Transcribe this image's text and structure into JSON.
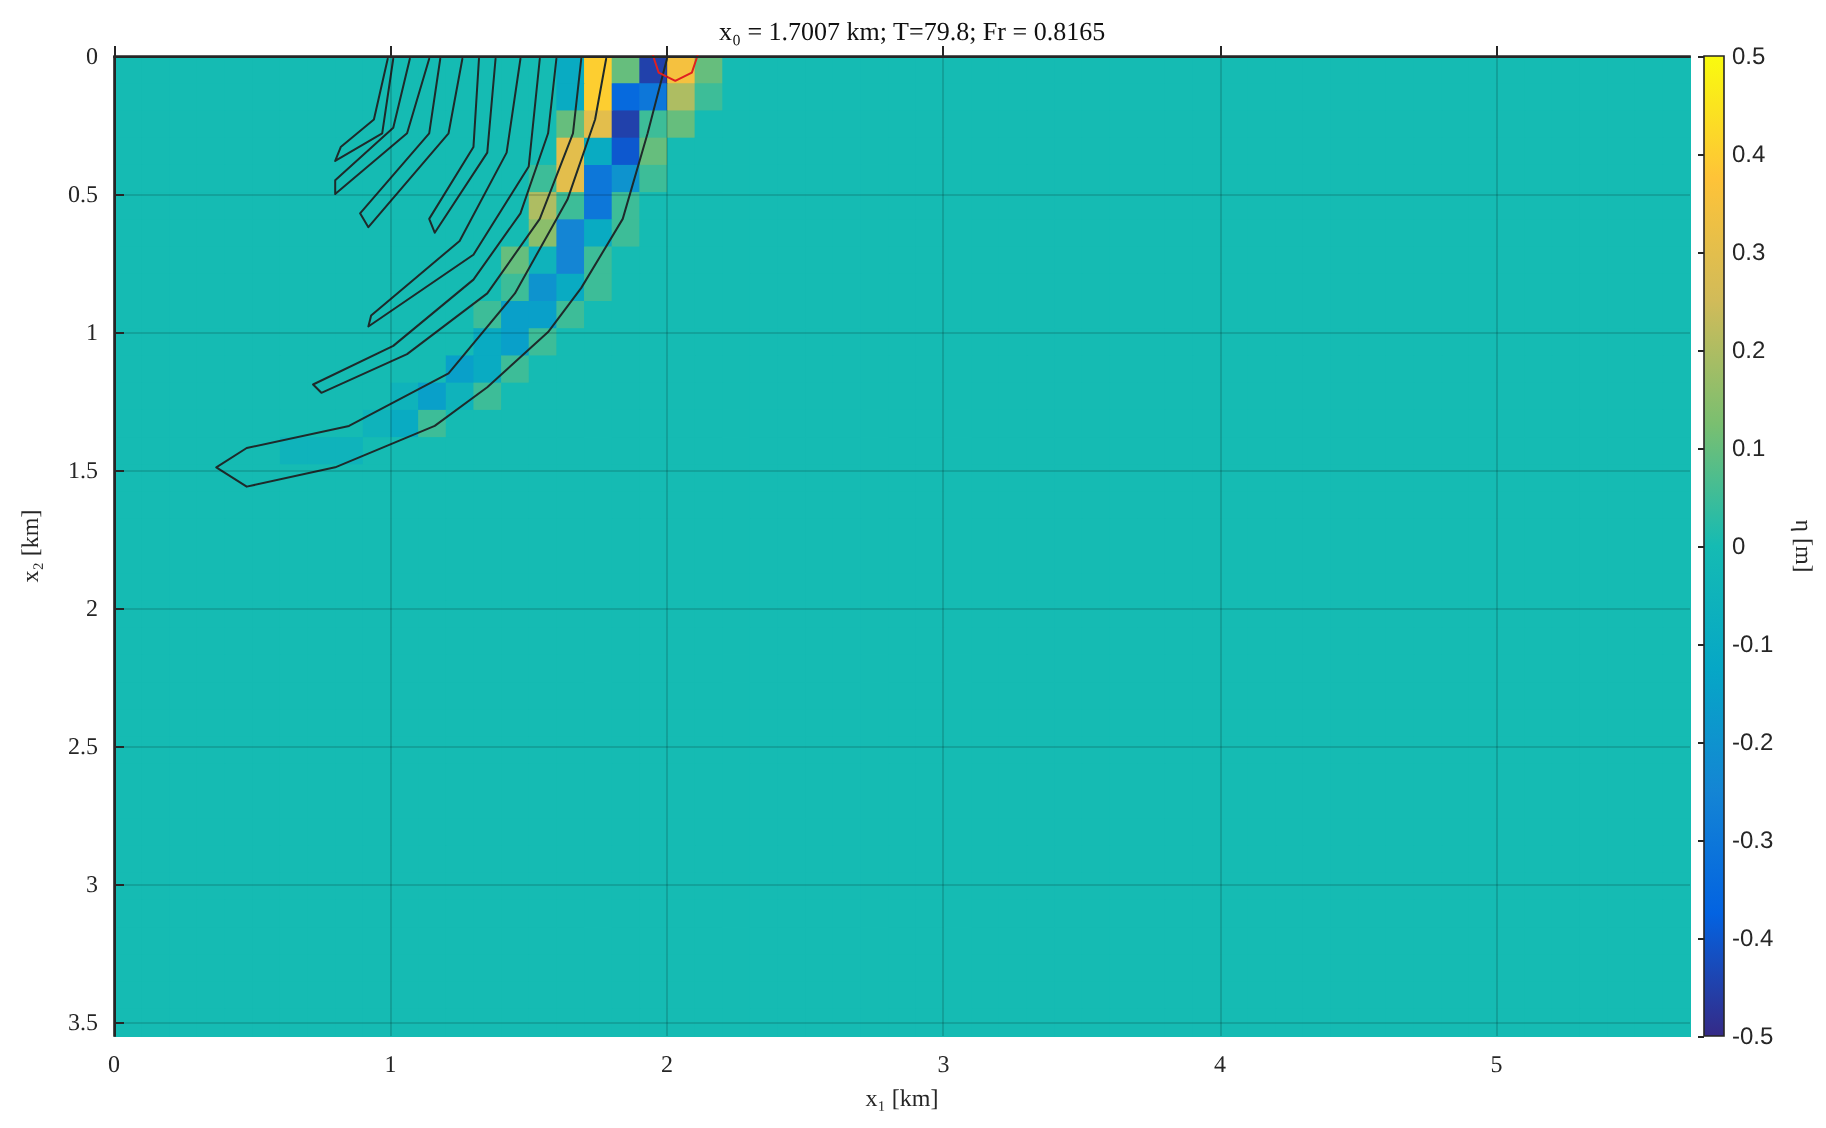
{
  "chart_data": {
    "type": "heatmap",
    "title": "x₀ = 1.7007 km; T=79.8; Fr = 0.8165",
    "xlabel": "x₁ [km]",
    "ylabel": "x₂ [km]",
    "clabel": "η [m]",
    "xlim": [
      0,
      5.7
    ],
    "ylim": [
      3.55,
      0
    ],
    "xticks": [
      0,
      1,
      2,
      3,
      4,
      5
    ],
    "yticks": [
      0,
      0.5,
      1,
      1.5,
      2,
      2.5,
      3,
      3.5
    ],
    "clim": [
      -0.5,
      0.5
    ],
    "cticks": [
      -0.5,
      -0.4,
      -0.3,
      -0.2,
      -0.1,
      0,
      0.1,
      0.2,
      0.3,
      0.4,
      0.5
    ],
    "grid": true,
    "cells": [
      [
        0,
        0,
        0,
        0,
        0,
        0,
        0,
        0,
        0,
        0,
        0,
        0,
        0,
        0,
        0,
        0,
        -0.1,
        0.4,
        0.1,
        -0.45,
        0.35,
        0.1,
        0,
        0,
        0,
        0,
        0,
        0,
        0,
        0,
        0,
        0,
        0,
        0,
        0,
        0,
        0,
        0,
        0,
        0,
        0,
        0,
        0,
        0,
        0,
        0,
        0,
        0,
        0,
        0,
        0,
        0,
        0,
        0,
        0,
        0,
        0
      ],
      [
        0,
        0,
        0,
        0,
        0,
        0,
        0,
        0,
        0,
        0,
        0,
        0,
        0,
        0,
        0,
        0,
        -0.1,
        0.4,
        -0.35,
        -0.3,
        0.2,
        0.05,
        0,
        0,
        0,
        0,
        0,
        0,
        0,
        0,
        0,
        0,
        0,
        0,
        0,
        0,
        0,
        0,
        0,
        0,
        0,
        0,
        0,
        0,
        0,
        0,
        0,
        0,
        0,
        0,
        0,
        0,
        0,
        0,
        0,
        0,
        0
      ],
      [
        0,
        0,
        0,
        0,
        0,
        0,
        0,
        0,
        0,
        0,
        0,
        0,
        0,
        0,
        0,
        0,
        0.1,
        0.3,
        -0.45,
        0.05,
        0.1,
        0,
        0,
        0,
        0,
        0,
        0,
        0,
        0,
        0,
        0,
        0,
        0,
        0,
        0,
        0,
        0,
        0,
        0,
        0,
        0,
        0,
        0,
        0,
        0,
        0,
        0,
        0,
        0,
        0,
        0,
        0,
        0,
        0,
        0,
        0,
        0
      ],
      [
        0,
        0,
        0,
        0,
        0,
        0,
        0,
        0,
        0,
        0,
        0,
        0,
        0,
        0,
        0,
        0,
        0.3,
        -0.1,
        -0.4,
        0.1,
        0,
        0,
        0,
        0,
        0,
        0,
        0,
        0,
        0,
        0,
        0,
        0,
        0,
        0,
        0,
        0,
        0,
        0,
        0,
        0,
        0,
        0,
        0,
        0,
        0,
        0,
        0,
        0,
        0,
        0,
        0,
        0,
        0,
        0,
        0,
        0,
        0
      ],
      [
        0,
        0,
        0,
        0,
        0,
        0,
        0,
        0,
        0,
        0,
        0,
        0,
        0,
        0,
        0,
        0.05,
        0.3,
        -0.3,
        -0.2,
        0.05,
        0,
        0,
        0,
        0,
        0,
        0,
        0,
        0,
        0,
        0,
        0,
        0,
        0,
        0,
        0,
        0,
        0,
        0,
        0,
        0,
        0,
        0,
        0,
        0,
        0,
        0,
        0,
        0,
        0,
        0,
        0,
        0,
        0,
        0,
        0,
        0,
        0
      ],
      [
        0,
        0,
        0,
        0,
        0,
        0,
        0,
        0,
        0,
        0,
        0,
        0,
        0,
        0,
        0,
        0.2,
        0.05,
        -0.3,
        0.05,
        0,
        0,
        0,
        0,
        0,
        0,
        0,
        0,
        0,
        0,
        0,
        0,
        0,
        0,
        0,
        0,
        0,
        0,
        0,
        0,
        0,
        0,
        0,
        0,
        0,
        0,
        0,
        0,
        0,
        0,
        0,
        0,
        0,
        0,
        0,
        0,
        0,
        0
      ],
      [
        0,
        0,
        0,
        0,
        0,
        0,
        0,
        0,
        0,
        0,
        0,
        0,
        0,
        0,
        0,
        0.15,
        -0.25,
        -0.1,
        0.05,
        0,
        0,
        0,
        0,
        0,
        0,
        0,
        0,
        0,
        0,
        0,
        0,
        0,
        0,
        0,
        0,
        0,
        0,
        0,
        0,
        0,
        0,
        0,
        0,
        0,
        0,
        0,
        0,
        0,
        0,
        0,
        0,
        0,
        0,
        0,
        0,
        0,
        0
      ],
      [
        0,
        0,
        0,
        0,
        0,
        0,
        0,
        0,
        0,
        0,
        0,
        0,
        0,
        0,
        0.1,
        -0.05,
        -0.25,
        0.05,
        0,
        0,
        0,
        0,
        0,
        0,
        0,
        0,
        0,
        0,
        0,
        0,
        0,
        0,
        0,
        0,
        0,
        0,
        0,
        0,
        0,
        0,
        0,
        0,
        0,
        0,
        0,
        0,
        0,
        0,
        0,
        0,
        0,
        0,
        0,
        0,
        0,
        0,
        0
      ],
      [
        0,
        0,
        0,
        0,
        0,
        0,
        0,
        0,
        0,
        0,
        0,
        0,
        0,
        0,
        0.05,
        -0.2,
        -0.1,
        0.05,
        0,
        0,
        0,
        0,
        0,
        0,
        0,
        0,
        0,
        0,
        0,
        0,
        0,
        0,
        0,
        0,
        0,
        0,
        0,
        0,
        0,
        0,
        0,
        0,
        0,
        0,
        0,
        0,
        0,
        0,
        0,
        0,
        0,
        0,
        0,
        0,
        0,
        0,
        0
      ],
      [
        0,
        0,
        0,
        0,
        0,
        0,
        0,
        0,
        0,
        0,
        0,
        0,
        0,
        0.05,
        -0.15,
        -0.15,
        0.05,
        0,
        0,
        0,
        0,
        0,
        0,
        0,
        0,
        0,
        0,
        0,
        0,
        0,
        0,
        0,
        0,
        0,
        0,
        0,
        0,
        0,
        0,
        0,
        0,
        0,
        0,
        0,
        0,
        0,
        0,
        0,
        0,
        0,
        0,
        0,
        0,
        0,
        0,
        0,
        0
      ],
      [
        0,
        0,
        0,
        0,
        0,
        0,
        0,
        0,
        0,
        0,
        0,
        0,
        0,
        -0.1,
        -0.15,
        0.05,
        0,
        0,
        0,
        0,
        0,
        0,
        0,
        0,
        0,
        0,
        0,
        0,
        0,
        0,
        0,
        0,
        0,
        0,
        0,
        0,
        0,
        0,
        0,
        0,
        0,
        0,
        0,
        0,
        0,
        0,
        0,
        0,
        0,
        0,
        0,
        0,
        0,
        0,
        0,
        0,
        0
      ],
      [
        0,
        0,
        0,
        0,
        0,
        0,
        0,
        0,
        0,
        0,
        0,
        0,
        -0.15,
        -0.1,
        0.05,
        0,
        0,
        0,
        0,
        0,
        0,
        0,
        0,
        0,
        0,
        0,
        0,
        0,
        0,
        0,
        0,
        0,
        0,
        0,
        0,
        0,
        0,
        0,
        0,
        0,
        0,
        0,
        0,
        0,
        0,
        0,
        0,
        0,
        0,
        0,
        0,
        0,
        0,
        0,
        0,
        0,
        0
      ],
      [
        0,
        0,
        0,
        0,
        0,
        0,
        0,
        0,
        0,
        0,
        -0.05,
        -0.15,
        -0.05,
        0.05,
        0,
        0,
        0,
        0,
        0,
        0,
        0,
        0,
        0,
        0,
        0,
        0,
        0,
        0,
        0,
        0,
        0,
        0,
        0,
        0,
        0,
        0,
        0,
        0,
        0,
        0,
        0,
        0,
        0,
        0,
        0,
        0,
        0,
        0,
        0,
        0,
        0,
        0,
        0,
        0,
        0,
        0,
        0
      ],
      [
        0,
        0,
        0,
        0,
        0,
        0,
        0,
        0,
        0,
        -0.05,
        -0.1,
        0.05,
        0,
        0,
        0,
        0,
        0,
        0,
        0,
        0,
        0,
        0,
        0,
        0,
        0,
        0,
        0,
        0,
        0,
        0,
        0,
        0,
        0,
        0,
        0,
        0,
        0,
        0,
        0,
        0,
        0,
        0,
        0,
        0,
        0,
        0,
        0,
        0,
        0,
        0,
        0,
        0,
        0,
        0,
        0,
        0,
        0
      ],
      [
        0,
        0,
        0,
        0,
        0,
        0,
        -0.05,
        -0.05,
        -0.05,
        0,
        0,
        0,
        0,
        0,
        0,
        0,
        0,
        0,
        0,
        0,
        0,
        0,
        0,
        0,
        0,
        0,
        0,
        0,
        0,
        0,
        0,
        0,
        0,
        0,
        0,
        0,
        0,
        0,
        0,
        0,
        0,
        0,
        0,
        0,
        0,
        0,
        0,
        0,
        0,
        0,
        0,
        0,
        0,
        0,
        0,
        0,
        0
      ],
      [
        0,
        0,
        0,
        0,
        0,
        0,
        0,
        0,
        0,
        0,
        0,
        0,
        0,
        0,
        0,
        0,
        0,
        0,
        0,
        0,
        0,
        0,
        0,
        0,
        0,
        0,
        0,
        0,
        0,
        0,
        0,
        0,
        0,
        0,
        0,
        0,
        0,
        0,
        0,
        0,
        0,
        0,
        0,
        0,
        0,
        0,
        0,
        0,
        0,
        0,
        0,
        0,
        0,
        0,
        0,
        0,
        0
      ],
      [
        0,
        0,
        0,
        0,
        0,
        0,
        0,
        0,
        0,
        0,
        0,
        0,
        0,
        0,
        0,
        0,
        0,
        0,
        0,
        0,
        0,
        0,
        0,
        0,
        0,
        0,
        0,
        0,
        0,
        0,
        0,
        0,
        0,
        0,
        0,
        0,
        0,
        0,
        0,
        0,
        0,
        0,
        0,
        0,
        0,
        0,
        0,
        0,
        0,
        0,
        0,
        0,
        0,
        0,
        0,
        0,
        0
      ],
      [
        0,
        0,
        0,
        0,
        0,
        0,
        0,
        0,
        0,
        0,
        0,
        0,
        0,
        0,
        0,
        0,
        0,
        0,
        0,
        0,
        0,
        0,
        0,
        0,
        0,
        0,
        0,
        0,
        0,
        0,
        0,
        0,
        0,
        0,
        0,
        0,
        0,
        0,
        0,
        0,
        0,
        0,
        0,
        0,
        0,
        0,
        0,
        0,
        0,
        0,
        0,
        0,
        0,
        0,
        0,
        0,
        0
      ],
      [
        0,
        0,
        0,
        0,
        0,
        0,
        0,
        0,
        0,
        0,
        0,
        0,
        0,
        0,
        0,
        0,
        0,
        0,
        0,
        0,
        0,
        0,
        0,
        0,
        0,
        0,
        0,
        0,
        0,
        0,
        0,
        0,
        0,
        0,
        0,
        0,
        0,
        0,
        0,
        0,
        0,
        0,
        0,
        0,
        0,
        0,
        0,
        0,
        0,
        0,
        0,
        0,
        0,
        0,
        0,
        0,
        0
      ],
      [
        0,
        0,
        0,
        0,
        0,
        0,
        0,
        0,
        0,
        0,
        0,
        0,
        0,
        0,
        0,
        0,
        0,
        0,
        0,
        0,
        0,
        0,
        0,
        0,
        0,
        0,
        0,
        0,
        0,
        0,
        0,
        0,
        0,
        0,
        0,
        0,
        0,
        0,
        0,
        0,
        0,
        0,
        0,
        0,
        0,
        0,
        0,
        0,
        0,
        0,
        0,
        0,
        0,
        0,
        0,
        0,
        0
      ],
      [
        0,
        0,
        0,
        0,
        0,
        0,
        0,
        0,
        0,
        0,
        0,
        0,
        0,
        0,
        0,
        0,
        0,
        0,
        0,
        0,
        0,
        0,
        0,
        0,
        0,
        0,
        0,
        0,
        0,
        0,
        0,
        0,
        0,
        0,
        0,
        0,
        0,
        0,
        0,
        0,
        0,
        0,
        0,
        0,
        0,
        0,
        0,
        0,
        0,
        0,
        0,
        0,
        0,
        0,
        0,
        0,
        0
      ],
      [
        0,
        0,
        0,
        0,
        0,
        0,
        0,
        0,
        0,
        0,
        0,
        0,
        0,
        0,
        0,
        0,
        0,
        0,
        0,
        0,
        0,
        0,
        0,
        0,
        0,
        0,
        0,
        0,
        0,
        0,
        0,
        0,
        0,
        0,
        0,
        0,
        0,
        0,
        0,
        0,
        0,
        0,
        0,
        0,
        0,
        0,
        0,
        0,
        0,
        0,
        0,
        0,
        0,
        0,
        0,
        0,
        0
      ],
      [
        0,
        0,
        0,
        0,
        0,
        0,
        0,
        0,
        0,
        0,
        0,
        0,
        0,
        0,
        0,
        0,
        0,
        0,
        0,
        0,
        0,
        0,
        0,
        0,
        0,
        0,
        0,
        0,
        0,
        0,
        0,
        0,
        0,
        0,
        0,
        0,
        0,
        0,
        0,
        0,
        0,
        0,
        0,
        0,
        0,
        0,
        0,
        0,
        0,
        0,
        0,
        0,
        0,
        0,
        0,
        0,
        0
      ],
      [
        0,
        0,
        0,
        0,
        0,
        0,
        0,
        0,
        0,
        0,
        0,
        0,
        0,
        0,
        0,
        0,
        0,
        0,
        0,
        0,
        0,
        0,
        0,
        0,
        0,
        0,
        0,
        0,
        0,
        0,
        0,
        0,
        0,
        0,
        0,
        0,
        0,
        0,
        0,
        0,
        0,
        0,
        0,
        0,
        0,
        0,
        0,
        0,
        0,
        0,
        0,
        0,
        0,
        0,
        0,
        0,
        0
      ],
      [
        0,
        0,
        0,
        0,
        0,
        0,
        0,
        0,
        0,
        0,
        0,
        0,
        0,
        0,
        0,
        0,
        0,
        0,
        0,
        0,
        0,
        0,
        0,
        0,
        0,
        0,
        0,
        0,
        0,
        0,
        0,
        0,
        0,
        0,
        0,
        0,
        0,
        0,
        0,
        0,
        0,
        0,
        0,
        0,
        0,
        0,
        0,
        0,
        0,
        0,
        0,
        0,
        0,
        0,
        0,
        0,
        0
      ],
      [
        0,
        0,
        0,
        0,
        0,
        0,
        0,
        0,
        0,
        0,
        0,
        0,
        0,
        0,
        0,
        0,
        0,
        0,
        0,
        0,
        0,
        0,
        0,
        0,
        0,
        0,
        0,
        0,
        0,
        0,
        0,
        0,
        0,
        0,
        0,
        0,
        0,
        0,
        0,
        0,
        0,
        0,
        0,
        0,
        0,
        0,
        0,
        0,
        0,
        0,
        0,
        0,
        0,
        0,
        0,
        0,
        0
      ],
      [
        0,
        0,
        0,
        0,
        0,
        0,
        0,
        0,
        0,
        0,
        0,
        0,
        0,
        0,
        0,
        0,
        0,
        0,
        0,
        0,
        0,
        0,
        0,
        0,
        0,
        0,
        0,
        0,
        0,
        0,
        0,
        0,
        0,
        0,
        0,
        0,
        0,
        0,
        0,
        0,
        0,
        0,
        0,
        0,
        0,
        0,
        0,
        0,
        0,
        0,
        0,
        0,
        0,
        0,
        0,
        0,
        0
      ],
      [
        0,
        0,
        0,
        0,
        0,
        0,
        0,
        0,
        0,
        0,
        0,
        0,
        0,
        0,
        0,
        0,
        0,
        0,
        0,
        0,
        0,
        0,
        0,
        0,
        0,
        0,
        0,
        0,
        0,
        0,
        0,
        0,
        0,
        0,
        0,
        0,
        0,
        0,
        0,
        0,
        0,
        0,
        0,
        0,
        0,
        0,
        0,
        0,
        0,
        0,
        0,
        0,
        0,
        0,
        0,
        0,
        0
      ],
      [
        0,
        0,
        0,
        0,
        0,
        0,
        0,
        0,
        0,
        0,
        0,
        0,
        0,
        0,
        0,
        0,
        0,
        0,
        0,
        0,
        0,
        0,
        0,
        0,
        0,
        0,
        0,
        0,
        0,
        0,
        0,
        0,
        0,
        0,
        0,
        0,
        0,
        0,
        0,
        0,
        0,
        0,
        0,
        0,
        0,
        0,
        0,
        0,
        0,
        0,
        0,
        0,
        0,
        0,
        0,
        0,
        0
      ],
      [
        0,
        0,
        0,
        0,
        0,
        0,
        0,
        0,
        0,
        0,
        0,
        0,
        0,
        0,
        0,
        0,
        0,
        0,
        0,
        0,
        0,
        0,
        0,
        0,
        0,
        0,
        0,
        0,
        0,
        0,
        0,
        0,
        0,
        0,
        0,
        0,
        0,
        0,
        0,
        0,
        0,
        0,
        0,
        0,
        0,
        0,
        0,
        0,
        0,
        0,
        0,
        0,
        0,
        0,
        0,
        0,
        0
      ],
      [
        0,
        0,
        0,
        0,
        0,
        0,
        0,
        0,
        0,
        0,
        0,
        0,
        0,
        0,
        0,
        0,
        0,
        0,
        0,
        0,
        0,
        0,
        0,
        0,
        0,
        0,
        0,
        0,
        0,
        0,
        0,
        0,
        0,
        0,
        0,
        0,
        0,
        0,
        0,
        0,
        0,
        0,
        0,
        0,
        0,
        0,
        0,
        0,
        0,
        0,
        0,
        0,
        0,
        0,
        0,
        0,
        0
      ],
      [
        0,
        0,
        0,
        0,
        0,
        0,
        0,
        0,
        0,
        0,
        0,
        0,
        0,
        0,
        0,
        0,
        0,
        0,
        0,
        0,
        0,
        0,
        0,
        0,
        0,
        0,
        0,
        0,
        0,
        0,
        0,
        0,
        0,
        0,
        0,
        0,
        0,
        0,
        0,
        0,
        0,
        0,
        0,
        0,
        0,
        0,
        0,
        0,
        0,
        0,
        0,
        0,
        0,
        0,
        0,
        0,
        0
      ],
      [
        0,
        0,
        0,
        0,
        0,
        0,
        0,
        0,
        0,
        0,
        0,
        0,
        0,
        0,
        0,
        0,
        0,
        0,
        0,
        0,
        0,
        0,
        0,
        0,
        0,
        0,
        0,
        0,
        0,
        0,
        0,
        0,
        0,
        0,
        0,
        0,
        0,
        0,
        0,
        0,
        0,
        0,
        0,
        0,
        0,
        0,
        0,
        0,
        0,
        0,
        0,
        0,
        0,
        0,
        0,
        0,
        0
      ],
      [
        0,
        0,
        0,
        0,
        0,
        0,
        0,
        0,
        0,
        0,
        0,
        0,
        0,
        0,
        0,
        0,
        0,
        0,
        0,
        0,
        0,
        0,
        0,
        0,
        0,
        0,
        0,
        0,
        0,
        0,
        0,
        0,
        0,
        0,
        0,
        0,
        0,
        0,
        0,
        0,
        0,
        0,
        0,
        0,
        0,
        0,
        0,
        0,
        0,
        0,
        0,
        0,
        0,
        0,
        0,
        0,
        0
      ],
      [
        0,
        0,
        0,
        0,
        0,
        0,
        0,
        0,
        0,
        0,
        0,
        0,
        0,
        0,
        0,
        0,
        0,
        0,
        0,
        0,
        0,
        0,
        0,
        0,
        0,
        0,
        0,
        0,
        0,
        0,
        0,
        0,
        0,
        0,
        0,
        0,
        0,
        0,
        0,
        0,
        0,
        0,
        0,
        0,
        0,
        0,
        0,
        0,
        0,
        0,
        0,
        0,
        0,
        0,
        0,
        0,
        0
      ],
      [
        0,
        0,
        0,
        0,
        0,
        0,
        0,
        0,
        0,
        0,
        0,
        0,
        0,
        0,
        0,
        0,
        0,
        0,
        0,
        0,
        0,
        0,
        0,
        0,
        0,
        0,
        0,
        0,
        0,
        0,
        0,
        0,
        0,
        0,
        0,
        0,
        0,
        0,
        0,
        0,
        0,
        0,
        0,
        0,
        0,
        0,
        0,
        0,
        0,
        0,
        0,
        0,
        0,
        0,
        0,
        0,
        0
      ]
    ],
    "series": [
      {
        "type": "line",
        "color": "#1e2a2a",
        "x": [
          2.0,
          1.93,
          1.84,
          1.69,
          1.57,
          1.35,
          1.16,
          0.8,
          0.48,
          0.37,
          0.48,
          0.85,
          1.21,
          1.45,
          1.64,
          1.74,
          1.78
        ],
        "values": [
          0.01,
          0.28,
          0.59,
          0.84,
          1.0,
          1.2,
          1.34,
          1.49,
          1.56,
          1.49,
          1.42,
          1.34,
          1.15,
          0.86,
          0.52,
          0.23,
          0.01
        ]
      },
      {
        "type": "line",
        "color": "#1e2a2a",
        "x": [
          1.69,
          1.66,
          1.54,
          1.35,
          1.06,
          0.75,
          0.72,
          1.01,
          1.3,
          1.47,
          1.57,
          1.6
        ],
        "values": [
          0.01,
          0.28,
          0.59,
          0.86,
          1.08,
          1.22,
          1.19,
          1.05,
          0.81,
          0.57,
          0.28,
          0.01
        ]
      },
      {
        "type": "line",
        "color": "#1e2a2a",
        "x": [
          1.54,
          1.5,
          1.3,
          0.92,
          0.93,
          1.25,
          1.42,
          1.47
        ],
        "values": [
          0.01,
          0.4,
          0.72,
          0.98,
          0.94,
          0.67,
          0.35,
          0.01
        ]
      },
      {
        "type": "line",
        "color": "#1e2a2a",
        "x": [
          1.38,
          1.35,
          1.16,
          1.14,
          1.3,
          1.32
        ],
        "values": [
          0.01,
          0.35,
          0.64,
          0.59,
          0.33,
          0.01
        ]
      },
      {
        "type": "line",
        "color": "#1e2a2a",
        "x": [
          1.26,
          1.21,
          0.92,
          0.89,
          1.14,
          1.18
        ],
        "values": [
          0.01,
          0.28,
          0.62,
          0.57,
          0.28,
          0.01
        ]
      },
      {
        "type": "line",
        "color": "#1e2a2a",
        "x": [
          1.14,
          1.06,
          0.8,
          0.8,
          1.01,
          1.07
        ],
        "values": [
          0.01,
          0.28,
          0.5,
          0.45,
          0.26,
          0.01
        ]
      },
      {
        "type": "line",
        "color": "#1e2a2a",
        "x": [
          1.01,
          0.97,
          0.8,
          0.82,
          0.94,
          0.99
        ],
        "values": [
          0.01,
          0.28,
          0.38,
          0.33,
          0.23,
          0.01
        ]
      },
      {
        "type": "line",
        "color": "#e02020",
        "x": [
          1.95,
          1.97,
          2.03,
          2.09,
          2.11
        ],
        "values": [
          0,
          0.06,
          0.09,
          0.06,
          0
        ]
      }
    ],
    "marker": "none",
    "line_style": "solid"
  }
}
